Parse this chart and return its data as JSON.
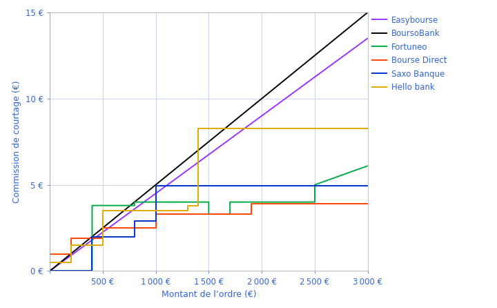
{
  "title": "",
  "xlabel": "Montant de l’ordre (€)",
  "ylabel": "Commission de courtage (€)",
  "xlim": [
    0,
    3000
  ],
  "ylim": [
    0,
    15
  ],
  "xticks": [
    0,
    500,
    1000,
    1500,
    2000,
    2500,
    3000
  ],
  "yticks": [
    0,
    5,
    10,
    15
  ],
  "background_color": "#ffffff",
  "grid_color": "#c8d4e8",
  "axis_label_color": "#3366cc",
  "tick_label_color": "#3366cc",
  "series": [
    {
      "name": "Easybourse",
      "color": "#9933ff",
      "x": [
        0,
        3000
      ],
      "y": [
        0,
        13.5
      ]
    },
    {
      "name": "BoursoBank",
      "color": "#000000",
      "x": [
        0,
        3000
      ],
      "y": [
        0,
        15
      ]
    },
    {
      "name": "Fortuneo",
      "color": "#00aa44",
      "x": [
        0,
        400,
        400,
        800,
        800,
        1500,
        1500,
        1700,
        1700,
        2500,
        2500,
        3000
      ],
      "y": [
        0,
        0,
        3.8,
        3.8,
        4.0,
        4.0,
        3.3,
        3.3,
        4.0,
        4.0,
        5.0,
        6.1
      ]
    },
    {
      "name": "Bourse Direct",
      "color": "#ff4400",
      "x": [
        0,
        200,
        200,
        500,
        500,
        1000,
        1000,
        1900,
        1900,
        3000
      ],
      "y": [
        0.99,
        0.99,
        1.9,
        1.9,
        2.5,
        2.5,
        3.3,
        3.3,
        3.9,
        3.9
      ]
    },
    {
      "name": "Saxo Banque",
      "color": "#0033cc",
      "x": [
        0,
        400,
        400,
        800,
        800,
        1000,
        1000,
        2500,
        2500,
        3000
      ],
      "y": [
        0,
        0,
        2.0,
        2.0,
        2.9,
        2.9,
        4.95,
        4.95,
        4.95,
        4.95
      ]
    },
    {
      "name": "Hello bank",
      "color": "#ddaa00",
      "x": [
        0,
        200,
        200,
        500,
        500,
        1300,
        1300,
        1400,
        1400,
        3000
      ],
      "y": [
        0.5,
        0.5,
        1.5,
        1.5,
        3.5,
        3.5,
        3.8,
        3.8,
        8.25,
        8.25
      ]
    }
  ],
  "legend_fontsize": 8.5,
  "axis_fontsize": 9,
  "tick_fontsize": 8.5,
  "linewidth": 1.4
}
